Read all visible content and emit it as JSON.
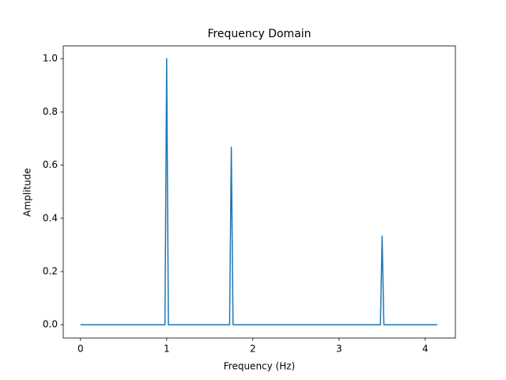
{
  "chart_data": {
    "type": "line",
    "title": "Frequency Domain",
    "x_label": "Frequency (Hz)",
    "y_label": "Amplitude",
    "x": [
      0,
      0.98,
      1.0,
      1.02,
      1.73,
      1.75,
      1.77,
      3.48,
      3.5,
      3.52,
      4.14
    ],
    "series": [
      {
        "name": "spectrum",
        "color": "#1f77b4",
        "values": [
          0,
          0,
          1.0,
          0,
          0,
          0.667,
          0,
          0,
          0.333,
          0,
          0
        ]
      }
    ],
    "xlim": [
      -0.2,
      4.35
    ],
    "xticks": [
      0,
      1,
      2,
      3,
      4
    ],
    "ylim": [
      -0.05,
      1.048
    ],
    "yticks": [
      {
        "value": 0,
        "label": "0.0"
      },
      0.2,
      0.4,
      0.6,
      0.8,
      {
        "value": 1,
        "label": "1.0"
      }
    ],
    "grid": false,
    "legend": false
  }
}
